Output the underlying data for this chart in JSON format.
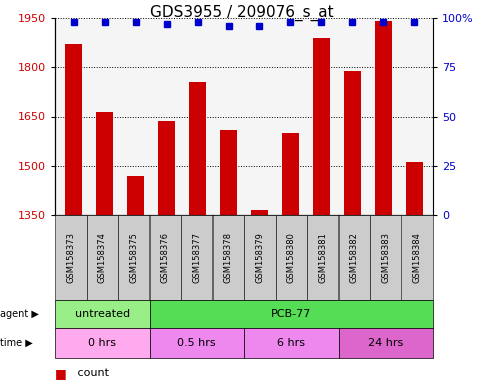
{
  "title": "GDS3955 / 209076_s_at",
  "samples": [
    "GSM158373",
    "GSM158374",
    "GSM158375",
    "GSM158376",
    "GSM158377",
    "GSM158378",
    "GSM158379",
    "GSM158380",
    "GSM158381",
    "GSM158382",
    "GSM158383",
    "GSM158384"
  ],
  "counts": [
    1870,
    1665,
    1470,
    1635,
    1755,
    1610,
    1365,
    1600,
    1890,
    1790,
    1940,
    1510
  ],
  "percentile_ranks": [
    98,
    98,
    98,
    97,
    98,
    96,
    96,
    98,
    98,
    98,
    98,
    98
  ],
  "ylim": [
    1350,
    1950
  ],
  "yticks": [
    1350,
    1500,
    1650,
    1800,
    1950
  ],
  "right_yticks": [
    0,
    25,
    50,
    75,
    100
  ],
  "right_ylim": [
    0,
    100
  ],
  "bar_color": "#cc0000",
  "dot_color": "#0000cc",
  "agent_labels": [
    {
      "label": "untreated",
      "start": 0,
      "end": 3,
      "color": "#99ee88"
    },
    {
      "label": "PCB-77",
      "start": 3,
      "end": 12,
      "color": "#55dd55"
    }
  ],
  "time_labels": [
    {
      "label": "0 hrs",
      "start": 0,
      "end": 3,
      "color": "#ffaaee"
    },
    {
      "label": "0.5 hrs",
      "start": 3,
      "end": 6,
      "color": "#ee88ee"
    },
    {
      "label": "6 hrs",
      "start": 6,
      "end": 9,
      "color": "#ee88ee"
    },
    {
      "label": "24 hrs",
      "start": 9,
      "end": 12,
      "color": "#dd66cc"
    }
  ],
  "bg_color": "#cccccc",
  "plot_bg": "#f5f5f5",
  "title_fontsize": 11,
  "tick_fontsize": 8,
  "sample_fontsize": 6,
  "label_row_fontsize": 8,
  "legend_fontsize": 8
}
